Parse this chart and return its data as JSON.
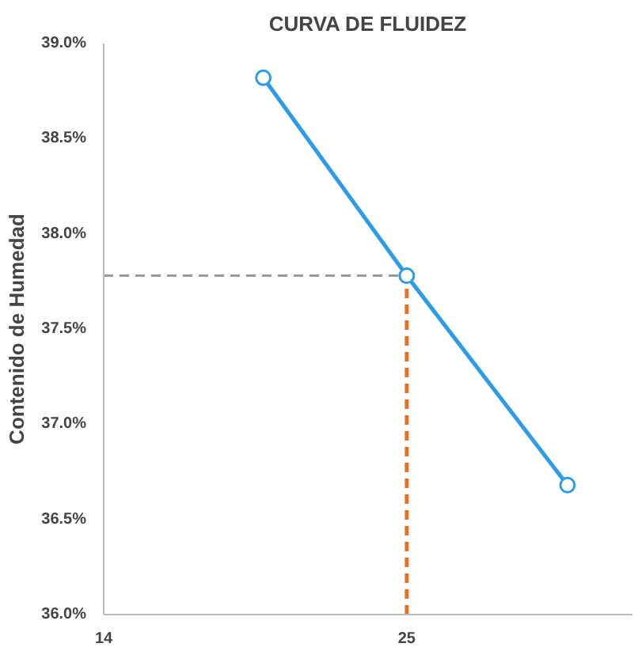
{
  "chart_data": {
    "type": "line",
    "title": "CURVA DE FLUIDEZ",
    "ylabel": "Contenido de Humedad",
    "x": [
      19,
      25,
      34
    ],
    "series": [
      {
        "color": "#2e9be6",
        "values": [
          38.82,
          37.78,
          36.68
        ]
      }
    ],
    "marker": "circle",
    "log": "x",
    "grid": false,
    "xlim": [
      14,
      38.5
    ],
    "xticks": [
      14,
      25
    ],
    "ylim": [
      36,
      39
    ],
    "yticks": [
      {
        "value": 36,
        "label": "36.0%"
      },
      {
        "value": 36.5,
        "label": "36.5%"
      },
      {
        "value": 37,
        "label": "37.0%"
      },
      {
        "value": 37.5,
        "label": "37.5%"
      },
      {
        "value": 38,
        "label": "38.0%"
      },
      {
        "value": 38.5,
        "label": "38.5%"
      },
      {
        "value": 39,
        "label": "39.0%"
      }
    ],
    "ref_lines": [
      {
        "axis": "x",
        "value": 25,
        "color": "#e8731e",
        "line_style": "dashed"
      },
      {
        "axis": "y",
        "value": 37.78,
        "color": "#999999",
        "line_style": "dashed"
      }
    ]
  }
}
